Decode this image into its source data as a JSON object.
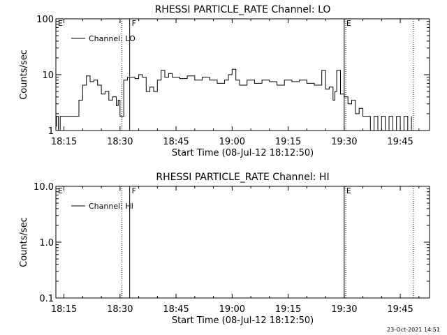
{
  "stamp": "23-Oct-2021 14:51",
  "chart_data": [
    {
      "type": "line",
      "title": "RHESSI PARTICLE_RATE Channel: LO",
      "xlabel": "Start Time (08-Jul-12 18:12:50)",
      "ylabel": "Counts/sec",
      "yscale": "log",
      "xlim": [
        "18:12:50",
        "19:52:50"
      ],
      "ylim": [
        1,
        100
      ],
      "xticks": [
        "18:15",
        "18:30",
        "18:45",
        "19:00",
        "19:15",
        "19:30",
        "19:45"
      ],
      "yticks": [
        "1",
        "10",
        "100"
      ],
      "legend": {
        "label": "Channel: LO",
        "position": "top-left"
      },
      "markers": [
        {
          "label": "E",
          "time": "18:12:50",
          "style": "dotted"
        },
        {
          "label": "",
          "time": "18:30:30",
          "style": "dotted"
        },
        {
          "label": "F",
          "time": "18:32:35",
          "style": "solid"
        },
        {
          "label": "E",
          "time": "19:30:00",
          "style": "solid"
        },
        {
          "label": "",
          "time": "19:30:25",
          "style": "dotted"
        },
        {
          "label": "",
          "time": "19:48:30",
          "style": "dotted"
        }
      ],
      "series": [
        {
          "name": "Channel: LO",
          "x": [
            "18:12:50",
            "18:13:00",
            "18:13:30",
            "18:14:00",
            "18:16:00",
            "18:18:00",
            "18:19:00",
            "18:20:00",
            "18:21:00",
            "18:22:00",
            "18:23:00",
            "18:24:00",
            "18:25:00",
            "18:26:00",
            "18:27:00",
            "18:28:00",
            "18:29:00",
            "18:29:30",
            "18:30:00",
            "18:30:30",
            "18:31:00",
            "18:32:00",
            "18:33:00",
            "18:34:00",
            "18:35:00",
            "18:36:00",
            "18:37:00",
            "18:38:00",
            "18:39:00",
            "18:40:00",
            "18:41:00",
            "18:42:00",
            "18:43:00",
            "18:44:00",
            "18:46:00",
            "18:48:00",
            "18:50:00",
            "18:52:00",
            "18:54:00",
            "18:56:00",
            "18:58:00",
            "18:59:00",
            "19:00:00",
            "19:01:00",
            "19:02:00",
            "19:04:00",
            "19:06:00",
            "19:08:00",
            "19:10:00",
            "19:12:00",
            "19:14:00",
            "19:16:00",
            "19:18:00",
            "19:20:00",
            "19:22:00",
            "19:24:00",
            "19:25:00",
            "19:26:00",
            "19:27:00",
            "19:27:30",
            "19:28:00",
            "19:29:00",
            "19:30:00",
            "19:31:00",
            "19:32:00",
            "19:33:00",
            "19:34:00",
            "19:35:00",
            "19:36:00",
            "19:37:00",
            "19:38:00",
            "19:39:00",
            "19:40:00",
            "19:41:00",
            "19:42:00",
            "19:43:00",
            "19:44:00",
            "19:45:00",
            "19:46:00",
            "19:47:00",
            "19:48:00"
          ],
          "y": [
            1.2,
            1.8,
            1.0,
            1.8,
            1.8,
            1.8,
            3.5,
            6.5,
            9.5,
            7.5,
            8.0,
            6.5,
            4.5,
            5.0,
            3.5,
            4.0,
            2.8,
            3.5,
            1.8,
            1.8,
            8.0,
            9.0,
            9.0,
            8.5,
            10.0,
            9.0,
            5.0,
            6.0,
            5.0,
            8.0,
            12.0,
            9.0,
            10.5,
            9.0,
            8.5,
            9.5,
            8.0,
            9.0,
            8.0,
            7.0,
            8.0,
            10.0,
            12.5,
            8.0,
            6.5,
            8.0,
            7.0,
            8.0,
            7.5,
            6.5,
            8.0,
            7.5,
            8.0,
            7.0,
            6.5,
            12.0,
            5.5,
            6.0,
            3.5,
            5.0,
            12.0,
            4.5,
            4.0,
            3.0,
            3.5,
            2.0,
            2.5,
            1.8,
            1.8,
            1.0,
            1.8,
            1.0,
            1.8,
            1.0,
            1.8,
            1.0,
            1.8,
            1.0,
            1.8,
            1.0,
            1.8
          ]
        }
      ]
    },
    {
      "type": "line",
      "title": "RHESSI PARTICLE_RATE Channel: HI",
      "xlabel": "Start Time (08-Jul-12 18:12:50)",
      "ylabel": "Counts/sec",
      "yscale": "log",
      "xlim": [
        "18:12:50",
        "19:52:50"
      ],
      "ylim": [
        0.1,
        10
      ],
      "xticks": [
        "18:15",
        "18:30",
        "18:45",
        "19:00",
        "19:15",
        "19:30",
        "19:45"
      ],
      "yticks": [
        "0.1",
        "1.0",
        "10.0"
      ],
      "legend": {
        "label": "Channel: HI",
        "position": "top-left"
      },
      "markers": [
        {
          "label": "E",
          "time": "18:12:50",
          "style": "dotted"
        },
        {
          "label": "",
          "time": "18:30:30",
          "style": "dotted"
        },
        {
          "label": "F",
          "time": "18:32:35",
          "style": "solid"
        },
        {
          "label": "E",
          "time": "19:30:00",
          "style": "solid"
        },
        {
          "label": "",
          "time": "19:30:25",
          "style": "dotted"
        },
        {
          "label": "",
          "time": "19:48:30",
          "style": "dotted"
        }
      ],
      "series": [
        {
          "name": "Channel: HI",
          "x": [],
          "y": []
        }
      ]
    }
  ]
}
